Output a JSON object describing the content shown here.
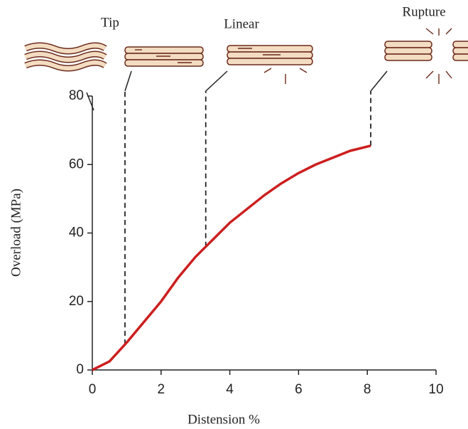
{
  "chart_data": {
    "type": "line",
    "x_label": "Distension %",
    "y_label": "Overload (MPa)",
    "x": [
      0,
      0.5,
      1,
      1.5,
      2,
      2.5,
      3,
      3.5,
      4,
      4.5,
      5,
      5.5,
      6,
      6.5,
      7,
      7.5,
      8.1
    ],
    "series": [
      {
        "name": "Overload",
        "color": "#cc1f1f",
        "values": [
          0,
          2.5,
          8,
          14,
          20,
          27,
          33,
          38,
          43,
          47,
          51,
          54.5,
          57.5,
          60,
          62,
          64,
          65.5
        ]
      }
    ],
    "xlim": [
      0,
      10
    ],
    "xticks": [
      0,
      2,
      4,
      6,
      8,
      10
    ],
    "ylim": [
      0,
      80
    ],
    "yticks": [
      0,
      20,
      40,
      60,
      80
    ],
    "regions": [
      {
        "label": "Tip",
        "x": 0.95
      },
      {
        "label": "Linear",
        "x": 3.3
      },
      {
        "label": "Rupture",
        "x": 8.1
      }
    ]
  }
}
